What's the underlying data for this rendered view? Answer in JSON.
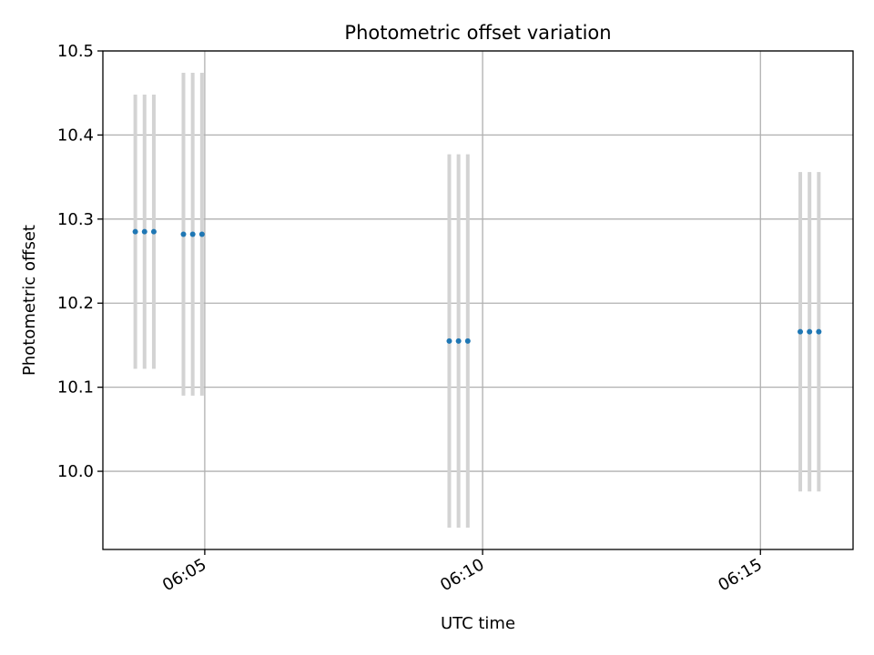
{
  "chart_data": {
    "type": "scatter",
    "title": "Photometric offset variation",
    "xlabel": "UTC time",
    "ylabel": "Photometric offset",
    "xlim": [
      "06:03:10",
      "06:16:40"
    ],
    "ylim": [
      9.907,
      10.5
    ],
    "x_ticks": [
      "06:05",
      "06:10",
      "06:15"
    ],
    "y_ticks": [
      "10.0",
      "10.1",
      "10.2",
      "10.3",
      "10.4",
      "10.5"
    ],
    "grid": true,
    "series": [
      {
        "color": "#1f77b4",
        "errorbar_color": "#d3d3d3",
        "points": [
          {
            "x": "06:03:45",
            "y": 10.285,
            "ylow": 10.122,
            "yhigh": 10.448
          },
          {
            "x": "06:03:55",
            "y": 10.285,
            "ylow": 10.122,
            "yhigh": 10.448
          },
          {
            "x": "06:04:05",
            "y": 10.285,
            "ylow": 10.122,
            "yhigh": 10.448
          },
          {
            "x": "06:04:37",
            "y": 10.282,
            "ylow": 10.09,
            "yhigh": 10.474
          },
          {
            "x": "06:04:47",
            "y": 10.282,
            "ylow": 10.09,
            "yhigh": 10.474
          },
          {
            "x": "06:04:57",
            "y": 10.282,
            "ylow": 10.09,
            "yhigh": 10.474
          },
          {
            "x": "06:09:24",
            "y": 10.155,
            "ylow": 9.933,
            "yhigh": 10.377
          },
          {
            "x": "06:09:34",
            "y": 10.155,
            "ylow": 9.933,
            "yhigh": 10.377
          },
          {
            "x": "06:09:44",
            "y": 10.155,
            "ylow": 9.933,
            "yhigh": 10.377
          },
          {
            "x": "06:15:43",
            "y": 10.166,
            "ylow": 9.976,
            "yhigh": 10.356
          },
          {
            "x": "06:15:53",
            "y": 10.166,
            "ylow": 9.976,
            "yhigh": 10.356
          },
          {
            "x": "06:16:03",
            "y": 10.166,
            "ylow": 9.976,
            "yhigh": 10.356
          }
        ]
      }
    ]
  }
}
